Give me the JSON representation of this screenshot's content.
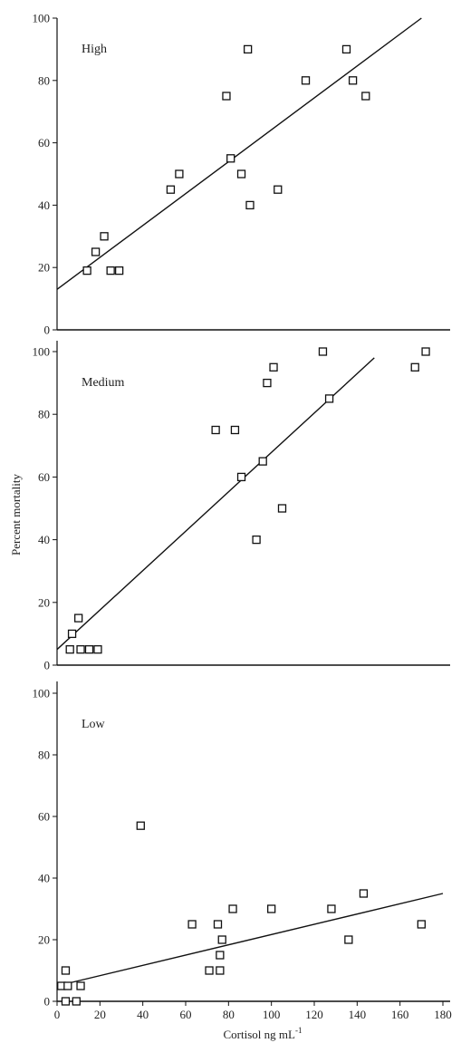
{
  "chart_data": [
    {
      "type": "scatter",
      "panel_label": "High",
      "xlim": [
        0,
        180
      ],
      "ylim": [
        0,
        100
      ],
      "yticks": [
        "0",
        "20",
        "40",
        "60",
        "80",
        "100"
      ],
      "points": [
        {
          "x": 14,
          "y": 19
        },
        {
          "x": 18,
          "y": 25
        },
        {
          "x": 22,
          "y": 30
        },
        {
          "x": 25,
          "y": 19
        },
        {
          "x": 29,
          "y": 19
        },
        {
          "x": 53,
          "y": 45
        },
        {
          "x": 57,
          "y": 50
        },
        {
          "x": 79,
          "y": 75
        },
        {
          "x": 81,
          "y": 55
        },
        {
          "x": 86,
          "y": 50
        },
        {
          "x": 89,
          "y": 90
        },
        {
          "x": 90,
          "y": 40
        },
        {
          "x": 103,
          "y": 45
        },
        {
          "x": 116,
          "y": 80
        },
        {
          "x": 135,
          "y": 90
        },
        {
          "x": 138,
          "y": 80
        },
        {
          "x": 144,
          "y": 75
        }
      ],
      "fit_line": [
        {
          "x": 0,
          "y": 13
        },
        {
          "x": 170,
          "y": 100
        }
      ]
    },
    {
      "type": "scatter",
      "panel_label": "Medium",
      "xlim": [
        0,
        180
      ],
      "ylim": [
        0,
        100
      ],
      "yticks": [
        "0",
        "20",
        "40",
        "60",
        "80",
        "100"
      ],
      "points": [
        {
          "x": 6,
          "y": 5
        },
        {
          "x": 7,
          "y": 10
        },
        {
          "x": 10,
          "y": 15
        },
        {
          "x": 11,
          "y": 5
        },
        {
          "x": 15,
          "y": 5
        },
        {
          "x": 19,
          "y": 5
        },
        {
          "x": 74,
          "y": 75
        },
        {
          "x": 83,
          "y": 75
        },
        {
          "x": 86,
          "y": 60
        },
        {
          "x": 93,
          "y": 40
        },
        {
          "x": 96,
          "y": 65
        },
        {
          "x": 98,
          "y": 90
        },
        {
          "x": 101,
          "y": 95
        },
        {
          "x": 105,
          "y": 50
        },
        {
          "x": 124,
          "y": 100
        },
        {
          "x": 127,
          "y": 85
        },
        {
          "x": 167,
          "y": 95
        },
        {
          "x": 172,
          "y": 100
        }
      ],
      "fit_line": [
        {
          "x": 0,
          "y": 5
        },
        {
          "x": 148,
          "y": 98
        }
      ]
    },
    {
      "type": "scatter",
      "panel_label": "Low",
      "xlim": [
        0,
        180
      ],
      "ylim": [
        0,
        100
      ],
      "yticks": [
        "0",
        "20",
        "40",
        "60",
        "80",
        "100"
      ],
      "xticks": [
        "0",
        "20",
        "40",
        "60",
        "80",
        "100",
        "120",
        "140",
        "160",
        "180"
      ],
      "xlabel": "Cortisol ng  mL",
      "xlabel_superscript": "-1",
      "points": [
        {
          "x": 2,
          "y": 5
        },
        {
          "x": 4,
          "y": 0
        },
        {
          "x": 4,
          "y": 10
        },
        {
          "x": 5,
          "y": 5
        },
        {
          "x": 9,
          "y": 0
        },
        {
          "x": 11,
          "y": 5
        },
        {
          "x": 39,
          "y": 57
        },
        {
          "x": 63,
          "y": 25
        },
        {
          "x": 71,
          "y": 10
        },
        {
          "x": 75,
          "y": 25
        },
        {
          "x": 76,
          "y": 10
        },
        {
          "x": 76,
          "y": 15
        },
        {
          "x": 77,
          "y": 20
        },
        {
          "x": 82,
          "y": 30
        },
        {
          "x": 100,
          "y": 30
        },
        {
          "x": 128,
          "y": 30
        },
        {
          "x": 136,
          "y": 20
        },
        {
          "x": 143,
          "y": 35
        },
        {
          "x": 170,
          "y": 25
        }
      ],
      "fit_line": [
        {
          "x": 0,
          "y": 5
        },
        {
          "x": 180,
          "y": 35
        }
      ]
    }
  ],
  "ylabel": "Percent mortality"
}
